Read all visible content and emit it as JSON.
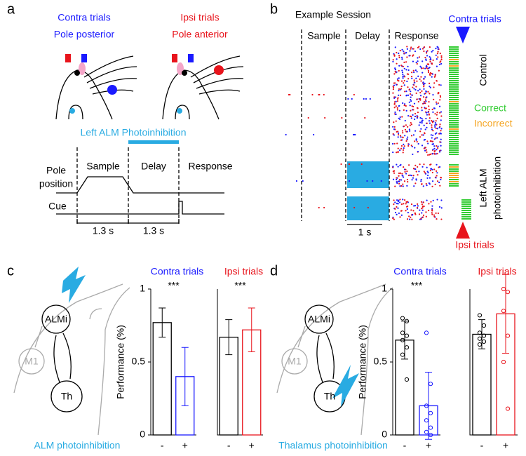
{
  "panels": {
    "a": {
      "label": "a",
      "contra_title": "Contra trials",
      "contra_sub": "Pole posterior",
      "ipsi_title": "Ipsi trials",
      "ipsi_sub": "Pole anterior",
      "photo_label": "Left ALM Photoinhibition",
      "pole_label": [
        "Pole",
        "position"
      ],
      "cue": "Cue",
      "epochs": [
        "Sample",
        "Delay",
        "Response"
      ],
      "durations": [
        "1.3 s",
        "1.3 s"
      ]
    },
    "b": {
      "label": "b",
      "title": "Example Session",
      "epochs": [
        "Sample",
        "Delay",
        "Response"
      ],
      "contra": "Contra trials",
      "ipsi": "Ipsi trials",
      "control": "Control",
      "correct": "Correct",
      "incorrect": "Incorrect",
      "photo": [
        "Left ALM",
        "photoinhibition"
      ],
      "scale": "1 s"
    },
    "c": {
      "label": "c",
      "nodes": [
        "ALMi",
        "M1",
        "Th"
      ],
      "xlabel": "ALM photoinhibition"
    },
    "d": {
      "label": "d",
      "nodes": [
        "ALMi",
        "M1",
        "Th"
      ],
      "xlabel": "Thalamus photoinhibition"
    }
  },
  "chart_data": [
    {
      "type": "bar",
      "title": "Contra trials",
      "title_color": "#1a1aff",
      "annotation": "***",
      "ylabel": "Performance (%)",
      "categories": [
        "-",
        "+"
      ],
      "values": [
        0.77,
        0.4
      ],
      "errors": [
        0.1,
        0.2
      ],
      "colors": [
        "#000000",
        "#1a1aff"
      ],
      "ylim": [
        0,
        1
      ],
      "yticks": [
        0,
        0.5,
        1
      ]
    },
    {
      "type": "bar",
      "title": "Ipsi trials",
      "title_color": "#e8141c",
      "annotation": "***",
      "categories": [
        "-",
        "+"
      ],
      "values": [
        0.67,
        0.72
      ],
      "errors": [
        0.12,
        0.15
      ],
      "colors": [
        "#000000",
        "#e8141c"
      ],
      "ylim": [
        0,
        1
      ]
    },
    {
      "type": "bar",
      "title": "Contra trials",
      "title_color": "#1a1aff",
      "annotation": "***",
      "ylabel": "Performance (%)",
      "categories": [
        "-",
        "+"
      ],
      "values": [
        0.65,
        0.2
      ],
      "errors": [
        0.13,
        0.23
      ],
      "colors": [
        "#000000",
        "#1a1aff"
      ],
      "points": [
        [
          0.8,
          0.78,
          0.7,
          0.68,
          0.65,
          0.6,
          0.55,
          0.38
        ],
        [
          0.7,
          0.35,
          0.2,
          0.15,
          0.1,
          0.05,
          0.02,
          0
        ]
      ],
      "ylim": [
        0,
        1
      ],
      "yticks": [
        0,
        0.5,
        1
      ]
    },
    {
      "type": "bar",
      "title": "Ipsi trials",
      "title_color": "#e8141c",
      "categories": [
        "-",
        "+"
      ],
      "values": [
        0.69,
        0.83
      ],
      "errors": [
        0.1,
        0.27
      ],
      "colors": [
        "#000000",
        "#e8141c"
      ],
      "points": [
        [
          0.82,
          0.75,
          0.7,
          0.68,
          0.66,
          0.64,
          0.62
        ],
        [
          1,
          0.98,
          0.85,
          0.68,
          0.5,
          0.18
        ]
      ],
      "ylim": [
        0,
        1
      ]
    }
  ]
}
